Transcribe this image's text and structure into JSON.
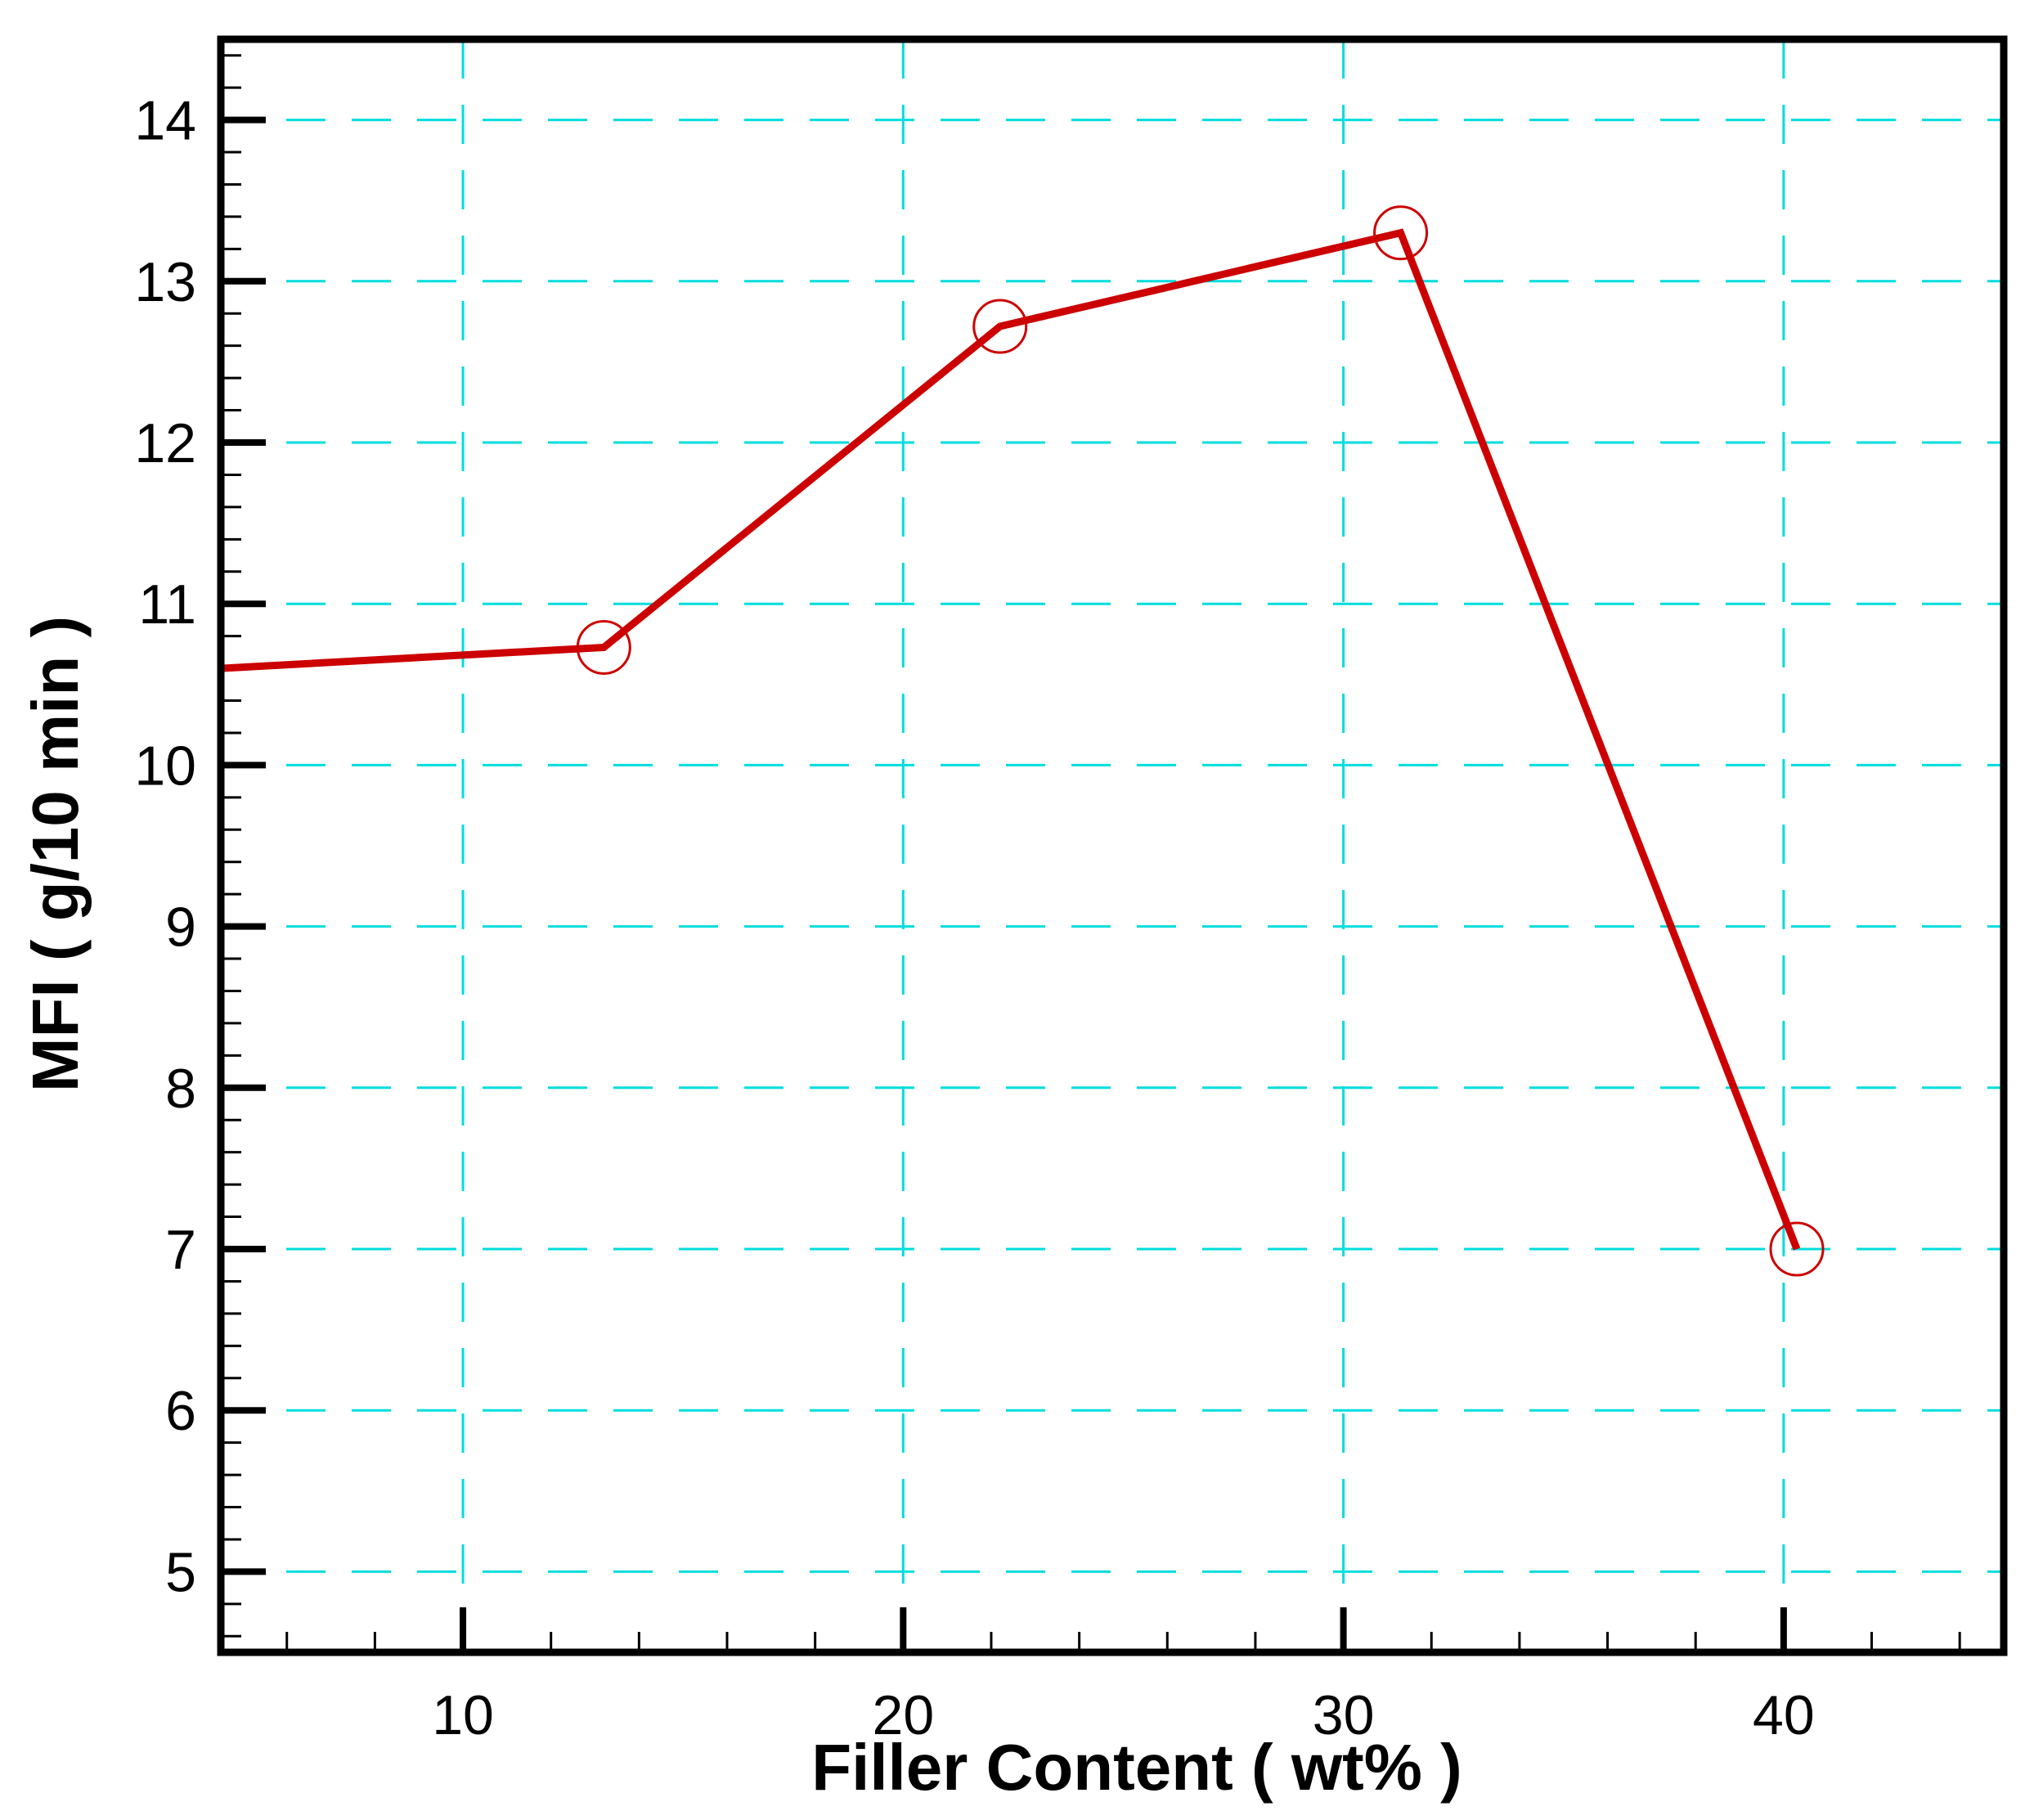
{
  "chart_data": {
    "type": "line",
    "title": "",
    "xlabel": "Filler Content ( wt% )",
    "ylabel": "MFI ( g/10 min )",
    "xlim": [
      4.5,
      45
    ],
    "ylim": [
      4.5,
      14.5
    ],
    "x_ticks": [
      10,
      20,
      30,
      40
    ],
    "y_ticks": [
      5,
      6,
      7,
      8,
      9,
      10,
      11,
      12,
      13,
      14
    ],
    "x_tick_labels": [
      "10",
      "20",
      "30",
      "40"
    ],
    "y_tick_labels": [
      "5",
      "6",
      "7",
      "8",
      "9",
      "10",
      "11",
      "12",
      "13",
      "14"
    ],
    "x_minor_step": 2,
    "y_minor_step": 0.2,
    "grid": true,
    "grid_color": "#00dddd",
    "line_color": "#cc0000",
    "series": [
      {
        "line_x": [
          4.5,
          13.2,
          22.2,
          31.3,
          40.3
        ],
        "line_y": [
          10.6,
          10.73,
          12.72,
          13.3,
          7.0
        ],
        "marker_x": [
          13.2,
          22.2,
          31.3,
          40.3
        ],
        "marker_y": [
          10.73,
          12.72,
          13.3,
          7.0
        ],
        "marker": "circle"
      }
    ]
  }
}
